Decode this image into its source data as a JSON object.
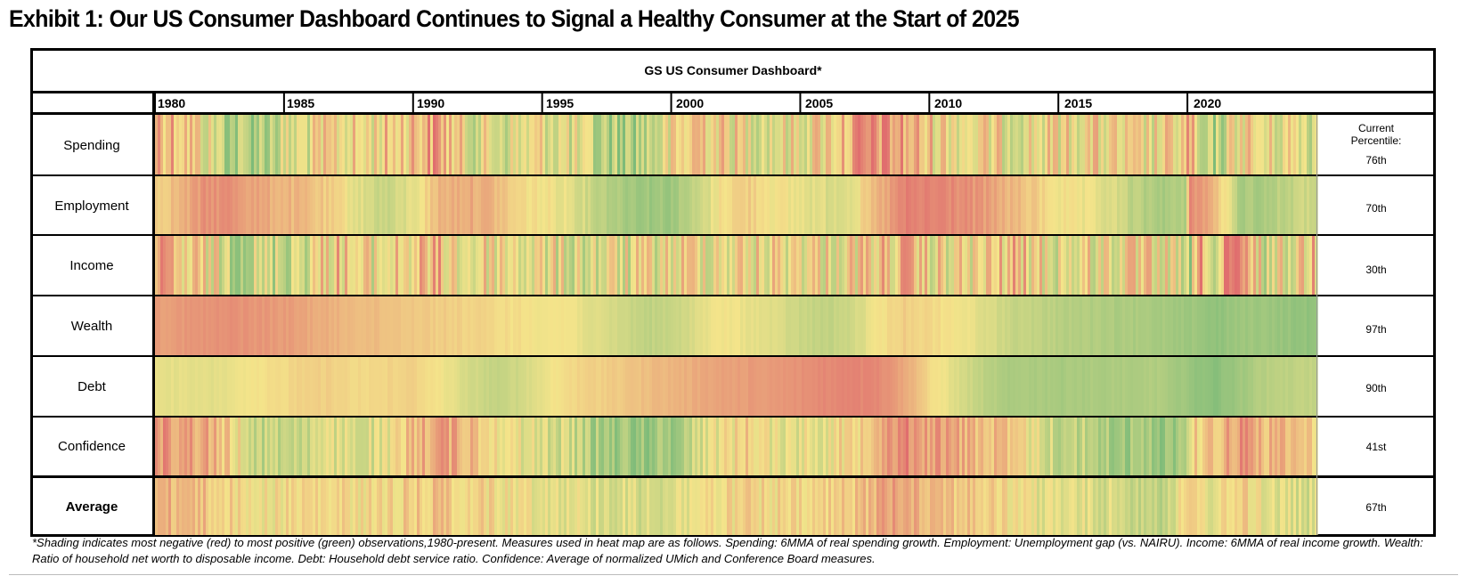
{
  "exhibit_title": "Exhibit 1: Our US Consumer Dashboard Continues to Signal a Healthy Consumer at the Start of 2025",
  "footnote": "*Shading indicates most negative (red) to most positive (green) observations,1980-present. Measures used in heat map are as follows.  Spending: 6MMA of real spending growth.  Employment: Unemployment gap (vs. NAIRU).  Income: 6MMA of real income growth.  Wealth: Ratio of household net worth to disposable income.  Debt: Household debt service ratio.  Confidence: Average of normalized UMich and Conference Board measures.",
  "colors": {
    "red": "#e06e6e",
    "yellow": "#f4e48a",
    "green": "#7dbb79"
  },
  "chart_data": {
    "type": "heatmap",
    "title": "GS US Consumer Dashboard*",
    "x_axis": {
      "tick_labels": [
        "1980",
        "1985",
        "1990",
        "1995",
        "2000",
        "2005",
        "2010",
        "2015",
        "2020"
      ],
      "range": [
        1980,
        2025
      ]
    },
    "current_percentile_header": "Current Percentile:",
    "color_scale": "red (most negative) to green (most positive)",
    "rows": [
      {
        "label": "Spending",
        "current_percentile": "76th",
        "volatility": 0.55,
        "profile": [
          [
            1980,
            0.2
          ],
          [
            1981,
            0.3
          ],
          [
            1982,
            0.55
          ],
          [
            1983,
            0.8
          ],
          [
            1984,
            0.75
          ],
          [
            1986,
            0.55
          ],
          [
            1987,
            0.45
          ],
          [
            1988,
            0.5
          ],
          [
            1989,
            0.4
          ],
          [
            1990,
            0.3
          ],
          [
            1991,
            0.2
          ],
          [
            1992,
            0.55
          ],
          [
            1994,
            0.6
          ],
          [
            1995,
            0.5
          ],
          [
            1996,
            0.6
          ],
          [
            1997,
            0.75
          ],
          [
            1998,
            0.8
          ],
          [
            1999,
            0.7
          ],
          [
            2000,
            0.55
          ],
          [
            2001,
            0.3
          ],
          [
            2002,
            0.45
          ],
          [
            2004,
            0.55
          ],
          [
            2005,
            0.5
          ],
          [
            2006,
            0.4
          ],
          [
            2007,
            0.25
          ],
          [
            2008,
            0.15
          ],
          [
            2009,
            0.25
          ],
          [
            2010,
            0.4
          ],
          [
            2012,
            0.5
          ],
          [
            2014,
            0.5
          ],
          [
            2016,
            0.45
          ],
          [
            2018,
            0.55
          ],
          [
            2019.9,
            0.45
          ],
          [
            2020,
            0.1
          ],
          [
            2020.4,
            0.85
          ],
          [
            2021,
            0.8
          ],
          [
            2022,
            0.4
          ],
          [
            2023,
            0.55
          ],
          [
            2024,
            0.5
          ],
          [
            2025,
            0.6
          ]
        ]
      },
      {
        "label": "Employment",
        "current_percentile": "70th",
        "volatility": 0.12,
        "profile": [
          [
            1980,
            0.4
          ],
          [
            1981,
            0.3
          ],
          [
            1982,
            0.15
          ],
          [
            1983,
            0.15
          ],
          [
            1984,
            0.25
          ],
          [
            1986,
            0.35
          ],
          [
            1987,
            0.45
          ],
          [
            1988,
            0.6
          ],
          [
            1989,
            0.7
          ],
          [
            1990,
            0.55
          ],
          [
            1991,
            0.3
          ],
          [
            1992,
            0.25
          ],
          [
            1993,
            0.3
          ],
          [
            1994,
            0.45
          ],
          [
            1995,
            0.5
          ],
          [
            1996,
            0.55
          ],
          [
            1997,
            0.7
          ],
          [
            1998,
            0.8
          ],
          [
            1999,
            0.85
          ],
          [
            2000,
            0.85
          ],
          [
            2001,
            0.7
          ],
          [
            2002,
            0.45
          ],
          [
            2003,
            0.4
          ],
          [
            2004,
            0.5
          ],
          [
            2005,
            0.55
          ],
          [
            2006,
            0.6
          ],
          [
            2007,
            0.55
          ],
          [
            2008,
            0.3
          ],
          [
            2009,
            0.1
          ],
          [
            2010,
            0.1
          ],
          [
            2011,
            0.12
          ],
          [
            2012,
            0.2
          ],
          [
            2013,
            0.3
          ],
          [
            2014,
            0.4
          ],
          [
            2015,
            0.5
          ],
          [
            2016,
            0.55
          ],
          [
            2017,
            0.6
          ],
          [
            2018,
            0.75
          ],
          [
            2019,
            0.8
          ],
          [
            2019.9,
            0.8
          ],
          [
            2020,
            0.1
          ],
          [
            2020.8,
            0.25
          ],
          [
            2021.3,
            0.45
          ],
          [
            2022,
            0.8
          ],
          [
            2023,
            0.8
          ],
          [
            2024,
            0.7
          ],
          [
            2025,
            0.65
          ]
        ]
      },
      {
        "label": "Income",
        "current_percentile": "30th",
        "volatility": 0.6,
        "profile": [
          [
            1980,
            0.3
          ],
          [
            1981,
            0.45
          ],
          [
            1982,
            0.5
          ],
          [
            1983,
            0.65
          ],
          [
            1984,
            0.7
          ],
          [
            1986,
            0.55
          ],
          [
            1987,
            0.35
          ],
          [
            1988,
            0.55
          ],
          [
            1990,
            0.4
          ],
          [
            1991,
            0.35
          ],
          [
            1992,
            0.55
          ],
          [
            1993,
            0.45
          ],
          [
            1995,
            0.55
          ],
          [
            1997,
            0.6
          ],
          [
            1999,
            0.55
          ],
          [
            2001,
            0.45
          ],
          [
            2003,
            0.5
          ],
          [
            2005,
            0.45
          ],
          [
            2006,
            0.5
          ],
          [
            2008,
            0.4
          ],
          [
            2009,
            0.35
          ],
          [
            2010,
            0.5
          ],
          [
            2012,
            0.5
          ],
          [
            2013,
            0.35
          ],
          [
            2015,
            0.55
          ],
          [
            2017,
            0.5
          ],
          [
            2019,
            0.5
          ],
          [
            2020,
            0.8
          ],
          [
            2020.6,
            0.15
          ],
          [
            2021,
            0.85
          ],
          [
            2021.5,
            0.1
          ],
          [
            2022,
            0.2
          ],
          [
            2023,
            0.6
          ],
          [
            2024,
            0.5
          ],
          [
            2025,
            0.3
          ]
        ]
      },
      {
        "label": "Wealth",
        "current_percentile": "97th",
        "volatility": 0.06,
        "profile": [
          [
            1980,
            0.2
          ],
          [
            1983,
            0.15
          ],
          [
            1985,
            0.2
          ],
          [
            1987,
            0.3
          ],
          [
            1989,
            0.35
          ],
          [
            1991,
            0.4
          ],
          [
            1993,
            0.45
          ],
          [
            1995,
            0.5
          ],
          [
            1996,
            0.5
          ],
          [
            1997,
            0.6
          ],
          [
            1998,
            0.65
          ],
          [
            1999,
            0.72
          ],
          [
            2000,
            0.7
          ],
          [
            2001,
            0.58
          ],
          [
            2002,
            0.5
          ],
          [
            2003,
            0.55
          ],
          [
            2004,
            0.6
          ],
          [
            2005,
            0.68
          ],
          [
            2006,
            0.72
          ],
          [
            2007,
            0.65
          ],
          [
            2008,
            0.5
          ],
          [
            2009,
            0.4
          ],
          [
            2010,
            0.45
          ],
          [
            2011,
            0.5
          ],
          [
            2012,
            0.58
          ],
          [
            2013,
            0.68
          ],
          [
            2015,
            0.75
          ],
          [
            2017,
            0.8
          ],
          [
            2019,
            0.82
          ],
          [
            2020,
            0.85
          ],
          [
            2021,
            0.92
          ],
          [
            2022,
            0.85
          ],
          [
            2023,
            0.87
          ],
          [
            2025,
            0.92
          ]
        ]
      },
      {
        "label": "Debt",
        "current_percentile": "90th",
        "volatility": 0.05,
        "profile": [
          [
            1980,
            0.55
          ],
          [
            1982,
            0.58
          ],
          [
            1984,
            0.5
          ],
          [
            1986,
            0.4
          ],
          [
            1988,
            0.45
          ],
          [
            1990,
            0.42
          ],
          [
            1991,
            0.5
          ],
          [
            1992,
            0.62
          ],
          [
            1993,
            0.7
          ],
          [
            1994,
            0.66
          ],
          [
            1995,
            0.55
          ],
          [
            1996,
            0.45
          ],
          [
            1998,
            0.38
          ],
          [
            2000,
            0.3
          ],
          [
            2002,
            0.22
          ],
          [
            2004,
            0.18
          ],
          [
            2006,
            0.12
          ],
          [
            2007,
            0.1
          ],
          [
            2008,
            0.12
          ],
          [
            2009,
            0.25
          ],
          [
            2010,
            0.45
          ],
          [
            2011,
            0.6
          ],
          [
            2012,
            0.72
          ],
          [
            2013,
            0.8
          ],
          [
            2015,
            0.82
          ],
          [
            2017,
            0.8
          ],
          [
            2019,
            0.78
          ],
          [
            2020,
            0.88
          ],
          [
            2021,
            0.95
          ],
          [
            2022,
            0.85
          ],
          [
            2023,
            0.75
          ],
          [
            2025,
            0.7
          ]
        ]
      },
      {
        "label": "Confidence",
        "current_percentile": "41st",
        "volatility": 0.3,
        "profile": [
          [
            1980,
            0.15
          ],
          [
            1981,
            0.2
          ],
          [
            1982,
            0.25
          ],
          [
            1983,
            0.45
          ],
          [
            1984,
            0.7
          ],
          [
            1986,
            0.65
          ],
          [
            1987,
            0.6
          ],
          [
            1989,
            0.6
          ],
          [
            1990,
            0.3
          ],
          [
            1991,
            0.2
          ],
          [
            1992,
            0.3
          ],
          [
            1993,
            0.4
          ],
          [
            1994,
            0.55
          ],
          [
            1995,
            0.6
          ],
          [
            1996,
            0.65
          ],
          [
            1997,
            0.8
          ],
          [
            1998,
            0.85
          ],
          [
            1999,
            0.85
          ],
          [
            2000,
            0.85
          ],
          [
            2001,
            0.6
          ],
          [
            2002,
            0.5
          ],
          [
            2003,
            0.4
          ],
          [
            2004,
            0.55
          ],
          [
            2005,
            0.55
          ],
          [
            2006,
            0.5
          ],
          [
            2007,
            0.45
          ],
          [
            2008,
            0.2
          ],
          [
            2009,
            0.1
          ],
          [
            2010,
            0.2
          ],
          [
            2011,
            0.25
          ],
          [
            2012,
            0.3
          ],
          [
            2013,
            0.4
          ],
          [
            2014,
            0.55
          ],
          [
            2015,
            0.7
          ],
          [
            2016,
            0.72
          ],
          [
            2017,
            0.82
          ],
          [
            2018,
            0.85
          ],
          [
            2019,
            0.85
          ],
          [
            2019.9,
            0.8
          ],
          [
            2020,
            0.45
          ],
          [
            2021,
            0.35
          ],
          [
            2022,
            0.15
          ],
          [
            2023,
            0.3
          ],
          [
            2024,
            0.35
          ],
          [
            2025,
            0.4
          ]
        ]
      },
      {
        "label": "Average",
        "current_percentile": "67th",
        "volatility": 0.25,
        "profile": [
          [
            1980,
            0.3
          ],
          [
            1981,
            0.3
          ],
          [
            1982,
            0.35
          ],
          [
            1983,
            0.45
          ],
          [
            1984,
            0.5
          ],
          [
            1986,
            0.45
          ],
          [
            1988,
            0.48
          ],
          [
            1990,
            0.4
          ],
          [
            1991,
            0.35
          ],
          [
            1992,
            0.42
          ],
          [
            1994,
            0.5
          ],
          [
            1996,
            0.55
          ],
          [
            1998,
            0.62
          ],
          [
            2000,
            0.6
          ],
          [
            2001,
            0.5
          ],
          [
            2003,
            0.45
          ],
          [
            2005,
            0.48
          ],
          [
            2007,
            0.4
          ],
          [
            2008,
            0.25
          ],
          [
            2009,
            0.2
          ],
          [
            2010,
            0.3
          ],
          [
            2012,
            0.4
          ],
          [
            2014,
            0.55
          ],
          [
            2016,
            0.6
          ],
          [
            2018,
            0.65
          ],
          [
            2019,
            0.7
          ],
          [
            2020,
            0.45
          ],
          [
            2021,
            0.55
          ],
          [
            2022,
            0.4
          ],
          [
            2023,
            0.55
          ],
          [
            2024,
            0.6
          ],
          [
            2025,
            0.65
          ]
        ]
      }
    ]
  }
}
